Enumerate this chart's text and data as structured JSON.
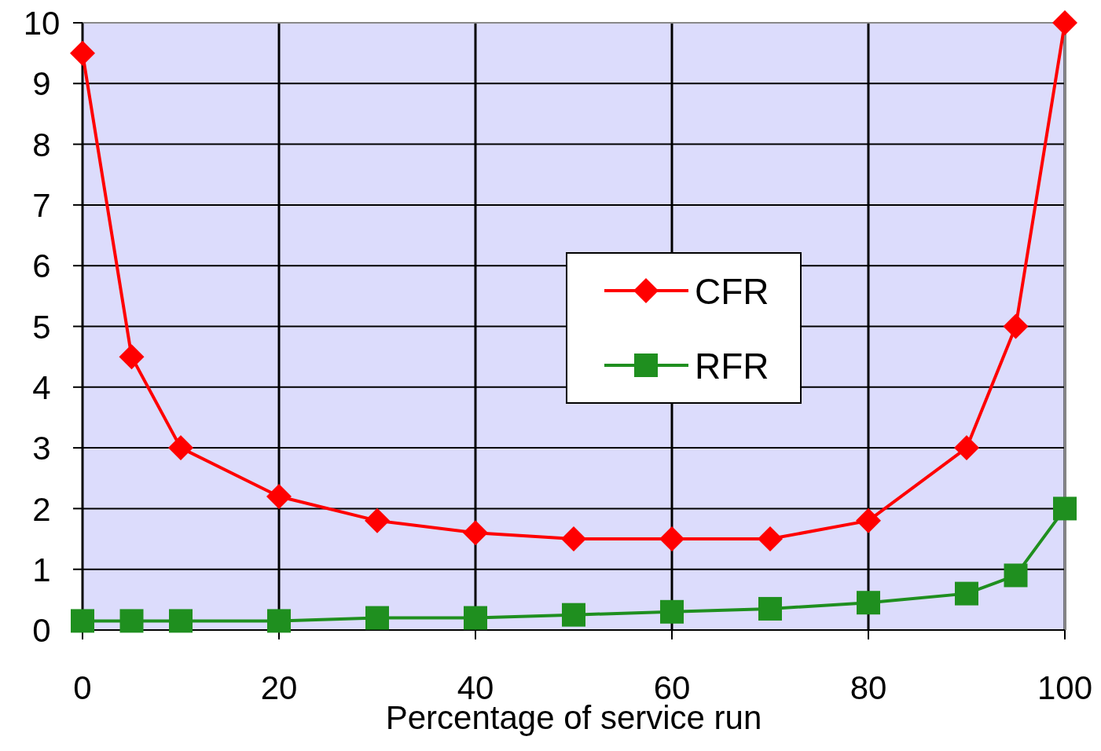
{
  "chart_data": {
    "type": "line",
    "xlabel": "Percentage of service run",
    "x": [
      0,
      5,
      10,
      20,
      30,
      40,
      50,
      60,
      70,
      80,
      90,
      95,
      100
    ],
    "series": [
      {
        "name": "CFR",
        "color": "#ff0000",
        "marker": "diamond",
        "values": [
          9.5,
          4.5,
          3.0,
          2.2,
          1.8,
          1.6,
          1.5,
          1.5,
          1.5,
          1.8,
          3.0,
          5.0,
          10.0
        ]
      },
      {
        "name": "RFR",
        "color": "#1f8f1f",
        "marker": "square",
        "values": [
          0.15,
          0.15,
          0.15,
          0.15,
          0.2,
          0.2,
          0.25,
          0.3,
          0.35,
          0.45,
          0.6,
          0.9,
          2.0
        ]
      }
    ],
    "xlim": [
      0,
      100
    ],
    "xticks": [
      0,
      20,
      40,
      60,
      80,
      100
    ],
    "ylim": [
      0,
      10
    ],
    "yticks": [
      0,
      1,
      2,
      3,
      4,
      5,
      6,
      7,
      8,
      9,
      10
    ],
    "grid": true,
    "legend": "center"
  }
}
